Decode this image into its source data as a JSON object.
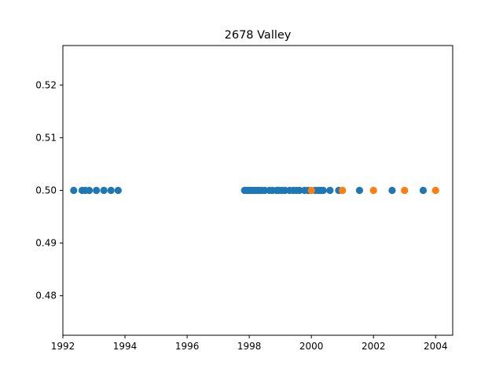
{
  "chart_data": {
    "type": "scatter",
    "title": "2678 Valley",
    "xlabel": "",
    "ylabel": "",
    "xlim": [
      1992.0,
      2004.55
    ],
    "ylim": [
      0.4725,
      0.5275
    ],
    "x_ticks": [
      1992,
      1994,
      1996,
      1998,
      2000,
      2002,
      2004
    ],
    "y_ticks": [
      0.48,
      0.49,
      0.5,
      0.51,
      0.52
    ],
    "y_tick_labels": [
      "0.48",
      "0.49",
      "0.50",
      "0.51",
      "0.52"
    ],
    "grid": false,
    "series": [
      {
        "color": "#1f77b4",
        "x": [
          1992.35,
          1992.62,
          1992.72,
          1992.85,
          1993.08,
          1993.32,
          1993.55,
          1993.78,
          1997.85,
          1997.92,
          1997.98,
          1998.05,
          1998.12,
          1998.18,
          1998.25,
          1998.32,
          1998.4,
          1998.5,
          1998.65,
          1998.75,
          1998.88,
          1998.95,
          1999.05,
          1999.15,
          1999.3,
          1999.42,
          1999.52,
          1999.62,
          1999.78,
          1999.9,
          2000.12,
          2000.22,
          2000.3,
          2000.38,
          2000.6,
          2000.88,
          2001.55,
          2002.6,
          2003.6
        ],
        "y": [
          0.5,
          0.5,
          0.5,
          0.5,
          0.5,
          0.5,
          0.5,
          0.5,
          0.5,
          0.5,
          0.5,
          0.5,
          0.5,
          0.5,
          0.5,
          0.5,
          0.5,
          0.5,
          0.5,
          0.5,
          0.5,
          0.5,
          0.5,
          0.5,
          0.5,
          0.5,
          0.5,
          0.5,
          0.5,
          0.5,
          0.5,
          0.5,
          0.5,
          0.5,
          0.5,
          0.5,
          0.5,
          0.5,
          0.5
        ]
      },
      {
        "color": "#ff7f0e",
        "x": [
          2000.0,
          2001.0,
          2002.0,
          2003.0,
          2004.0
        ],
        "y": [
          0.5,
          0.5,
          0.5,
          0.5,
          0.5
        ]
      }
    ]
  }
}
